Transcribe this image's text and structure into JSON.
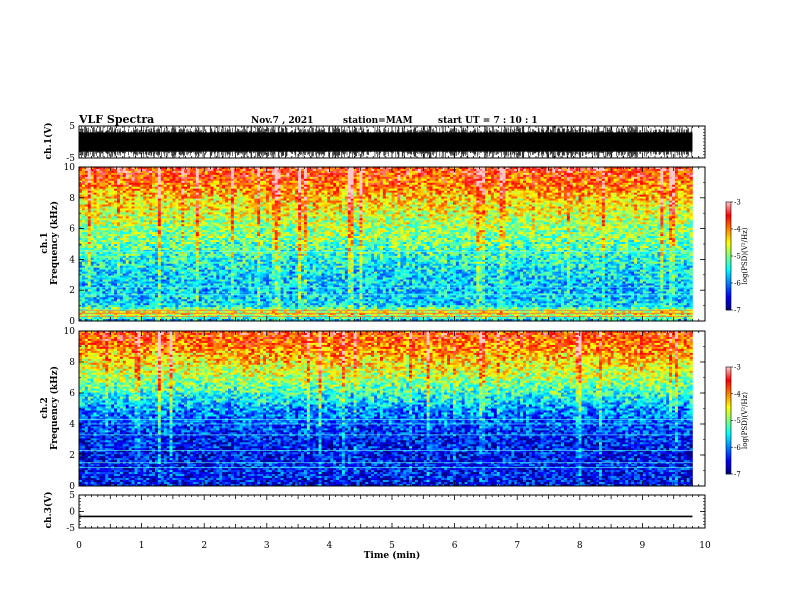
{
  "header": {
    "title": "VLF Spectra",
    "date": "Nov.7 , 2021",
    "station": "station=MAM",
    "start": "start UT = 7 : 10 : 1"
  },
  "colors": {
    "spectrogram_scale": [
      "#00007f",
      "#0000ff",
      "#0080ff",
      "#00ffff",
      "#80ff80",
      "#ffff00",
      "#ff8000",
      "#ff0000",
      "#ffc8c8"
    ]
  },
  "chart_data": [
    {
      "type": "line",
      "name": "ch1 waveform",
      "ylabel": "ch.1(V)",
      "ylim": [
        -5,
        5
      ],
      "y_ticks": [
        "5",
        "-5"
      ],
      "xlim": [
        0,
        10
      ],
      "note_values": "dense black impulsive waveform spanning roughly the full -5 to 5 V range over 0 to 9.8 min"
    },
    {
      "type": "heatmap",
      "name": "ch1 spectrogram",
      "ylabel": "ch.1 Frequency (kHz)",
      "ylim": [
        0,
        10
      ],
      "y_ticks": [
        "0",
        "2",
        "4",
        "6",
        "8",
        "10"
      ],
      "xlim": [
        0,
        10
      ],
      "data_extent_min": 9.8,
      "colorbar": {
        "label": "log(PSD)(V²/Hz)",
        "range": [
          -7,
          -3
        ],
        "ticks": [
          "-3",
          "-4",
          "-5",
          "-6",
          "-7"
        ]
      },
      "power_profile": [
        {
          "freq_khz": 0.0,
          "log_psd": -5.8
        },
        {
          "freq_khz": 0.5,
          "log_psd": -4.4
        },
        {
          "freq_khz": 1.0,
          "log_psd": -5.6
        },
        {
          "freq_khz": 2.0,
          "log_psd": -5.7
        },
        {
          "freq_khz": 3.0,
          "log_psd": -5.6
        },
        {
          "freq_khz": 4.0,
          "log_psd": -5.4
        },
        {
          "freq_khz": 5.0,
          "log_psd": -5.1
        },
        {
          "freq_khz": 6.0,
          "log_psd": -4.9
        },
        {
          "freq_khz": 7.0,
          "log_psd": -4.6
        },
        {
          "freq_khz": 8.0,
          "log_psd": -4.3
        },
        {
          "freq_khz": 9.0,
          "log_psd": -3.9
        },
        {
          "freq_khz": 10.0,
          "log_psd": -3.5
        }
      ],
      "horizontal_lines_khz": [
        0.3,
        0.5,
        0.7,
        1.7,
        2.2,
        4.5
      ]
    },
    {
      "type": "heatmap",
      "name": "ch2 spectrogram",
      "ylabel": "ch.2 Frequency (kHz)",
      "ylim": [
        0,
        10
      ],
      "y_ticks": [
        "0",
        "2",
        "4",
        "6",
        "8",
        "10"
      ],
      "xlim": [
        0,
        10
      ],
      "data_extent_min": 9.8,
      "colorbar": {
        "label": "log(PSD)(V²/Hz)",
        "range": [
          -7,
          -3
        ],
        "ticks": [
          "-3",
          "-4",
          "-5",
          "-6",
          "-7"
        ]
      },
      "power_profile": [
        {
          "freq_khz": 0.0,
          "log_psd": -6.5
        },
        {
          "freq_khz": 1.0,
          "log_psd": -6.4
        },
        {
          "freq_khz": 2.0,
          "log_psd": -6.5
        },
        {
          "freq_khz": 3.0,
          "log_psd": -6.4
        },
        {
          "freq_khz": 4.0,
          "log_psd": -6.2
        },
        {
          "freq_khz": 5.0,
          "log_psd": -5.9
        },
        {
          "freq_khz": 6.0,
          "log_psd": -5.3
        },
        {
          "freq_khz": 7.0,
          "log_psd": -4.8
        },
        {
          "freq_khz": 8.0,
          "log_psd": -4.4
        },
        {
          "freq_khz": 9.0,
          "log_psd": -4.0
        },
        {
          "freq_khz": 10.0,
          "log_psd": -3.6
        }
      ],
      "horizontal_lines_khz": [
        1.2,
        1.5,
        2.3,
        3.3,
        4.0,
        4.3
      ]
    },
    {
      "type": "line",
      "name": "ch3 waveform",
      "ylabel": "ch.3(V)",
      "ylim": [
        -5,
        5
      ],
      "y_ticks": [
        "5",
        "0",
        "-5"
      ],
      "xlim": [
        0,
        10
      ],
      "x": [
        0,
        9.8
      ],
      "y": [
        -1.5,
        -1.5
      ]
    }
  ],
  "xaxis": {
    "label": "Time (min)",
    "ticks": [
      "0",
      "1",
      "2",
      "3",
      "4",
      "5",
      "6",
      "7",
      "8",
      "9",
      "10"
    ]
  }
}
